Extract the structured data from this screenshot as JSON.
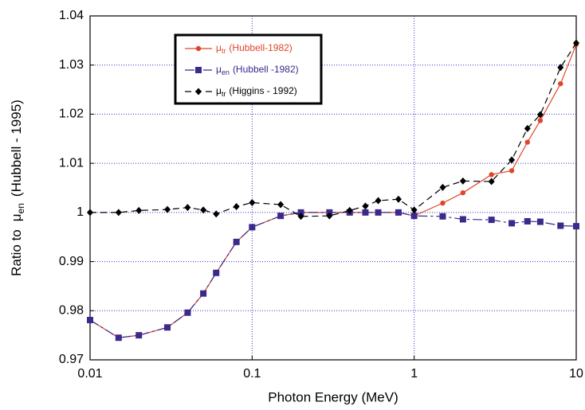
{
  "chart_data": {
    "type": "line",
    "xscale": "log",
    "grid": true,
    "x_label": "Photon Energy (MeV)",
    "y_label": {
      "prefix": "Ratio to",
      "symbol": "μ",
      "subscript": "en",
      "suffix": "(Hubbell - 1995)"
    },
    "x": [
      0.01,
      0.015,
      0.02,
      0.03,
      0.04,
      0.05,
      0.06,
      0.08,
      0.1,
      0.15,
      0.2,
      0.3,
      0.4,
      0.5,
      0.6,
      0.8,
      1,
      1.5,
      2,
      3,
      4,
      5,
      6,
      8,
      10
    ],
    "xlim": [
      0.01,
      10
    ],
    "xticks": [
      0.01,
      0.1,
      1,
      10
    ],
    "ylim": [
      0.97,
      1.04
    ],
    "yticks": [
      0.97,
      0.98,
      0.99,
      1,
      1.01,
      1.02,
      1.03,
      1.04
    ],
    "series": [
      {
        "symbol": "μ",
        "subscript": "tr",
        "name": "(Hubbell-1982)",
        "color": "#e0452a",
        "marker": "circle",
        "dash": "none",
        "values": [
          0.9781,
          0.9745,
          0.975,
          0.9766,
          0.9796,
          0.9835,
          0.9877,
          0.994,
          0.997,
          0.9993,
          1.0,
          1.0,
          1.0,
          1.0,
          1.0,
          1.0,
          0.9993,
          1.0019,
          1.004,
          1.0077,
          1.0085,
          1.0143,
          1.0187,
          1.0262,
          1.0342
        ]
      },
      {
        "symbol": "μ",
        "subscript": "en",
        "name": "(Hubbell -1982)",
        "color": "#3b2a8c",
        "marker": "square",
        "dash": "12 4 3 4",
        "values": [
          0.9781,
          0.9745,
          0.975,
          0.9766,
          0.9796,
          0.9835,
          0.9877,
          0.994,
          0.997,
          0.9993,
          1.0,
          1.0,
          1.0,
          1.0,
          1.0,
          1.0,
          0.9993,
          0.9992,
          0.9986,
          0.9985,
          0.9978,
          0.9982,
          0.9981,
          0.9973,
          0.9972
        ]
      },
      {
        "symbol": "μ",
        "subscript": "tr",
        "name": "(Higgins - 1992)",
        "color": "#000000",
        "marker": "diamond",
        "dash": "8 5",
        "values": [
          1.0,
          1.0,
          1.0004,
          1.0006,
          1.001,
          1.0005,
          0.9997,
          1.0012,
          1.002,
          1.0016,
          0.9992,
          0.9993,
          1.0004,
          1.0013,
          1.0024,
          1.0027,
          1.0005,
          1.0051,
          1.0064,
          1.0063,
          1.0107,
          1.0171,
          1.0199,
          1.0295,
          1.0345
        ]
      }
    ]
  }
}
